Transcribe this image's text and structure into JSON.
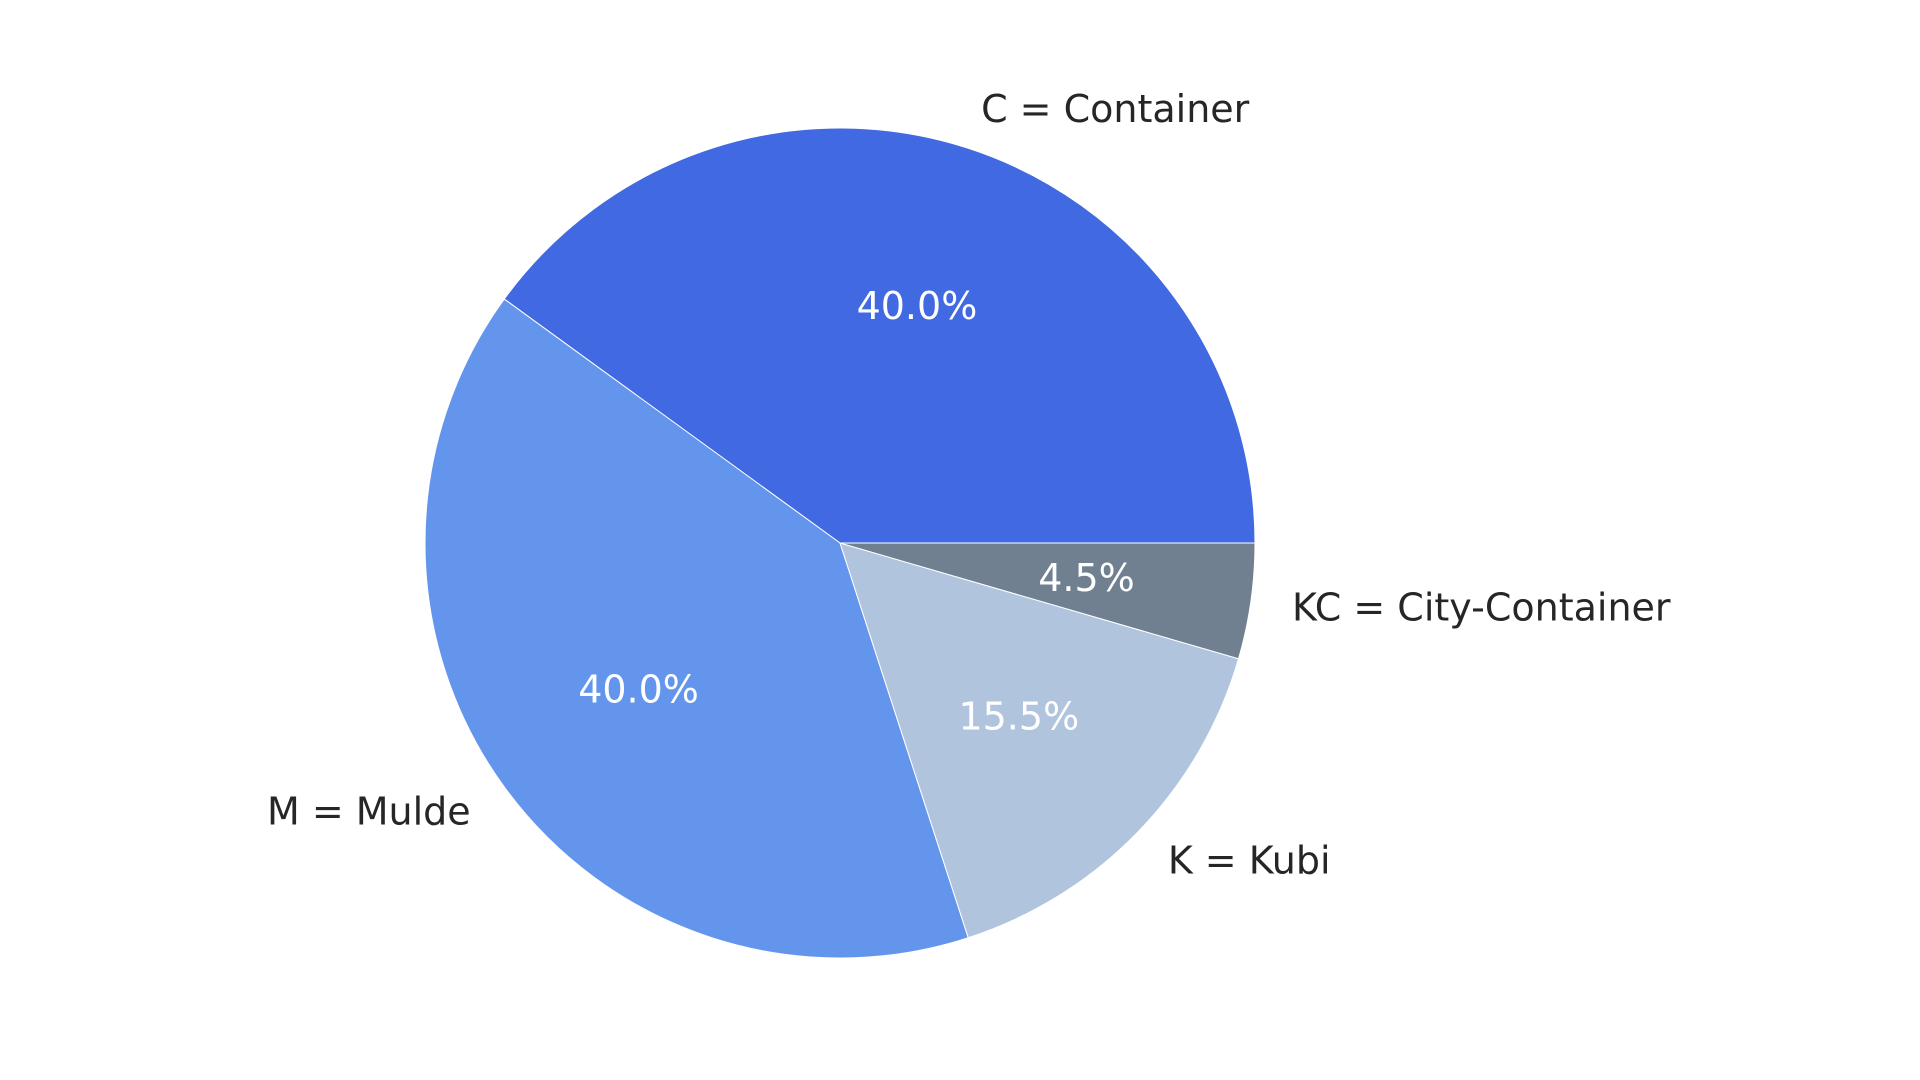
{
  "chart_data": {
    "type": "pie",
    "slices": [
      {
        "label": "C = Container",
        "value": 40.0,
        "pct_label": "40.0%",
        "color": "#4169E1"
      },
      {
        "label": "M = Mulde",
        "value": 40.0,
        "pct_label": "40.0%",
        "color": "#6495ED"
      },
      {
        "label": "K = Kubi",
        "value": 15.5,
        "pct_label": "15.5%",
        "color": "#B0C4DE"
      },
      {
        "label": "KC = City-Container",
        "value": 4.5,
        "pct_label": "4.5%",
        "color": "#708090"
      }
    ],
    "start_angle_deg": 0,
    "direction": "counterclockwise",
    "edge_color": "#ffffff",
    "legend": "none"
  }
}
